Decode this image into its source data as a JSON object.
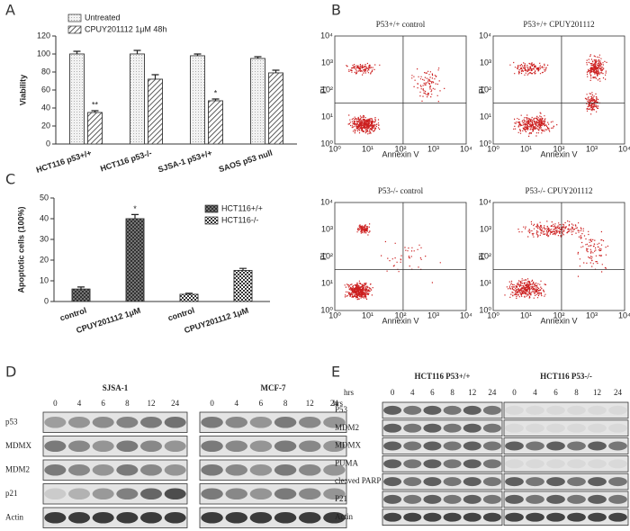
{
  "panel_labels": [
    "A",
    "B",
    "C",
    "D",
    "E"
  ],
  "chart_data": [
    {
      "type": "bar",
      "ylabel": "Viability",
      "categories": [
        "HCT116  p53+/+",
        "HCT116  p53-/-",
        "SJSA-1  p53+/+",
        "SAOS  p53 null"
      ],
      "series": [
        {
          "name": "Untreated",
          "color": "#ececec",
          "values": [
            100,
            100,
            98,
            95
          ],
          "errors": [
            3,
            4,
            2,
            2
          ]
        },
        {
          "name": "CPUY201112  1μM  48h",
          "color": "#ffffff",
          "values": [
            35,
            72,
            48,
            79
          ],
          "errors": [
            2,
            5,
            2,
            3
          ]
        }
      ],
      "annotations": [
        "**",
        "*"
      ],
      "ylim": [
        0,
        120
      ],
      "yticks": [
        0,
        20,
        40,
        60,
        80,
        100,
        120
      ]
    },
    {
      "type": "bar",
      "ylabel": "Apoptotic cells (100%)",
      "categories": [
        "control",
        "CPUY201112  1μM",
        "control",
        "CPUY201112  1μM"
      ],
      "series": [
        {
          "name": "HCT116+/+",
          "color": "#7a7a7a",
          "values": [
            6,
            40,
            null,
            null
          ],
          "errors": [
            1,
            2,
            null,
            null
          ]
        },
        {
          "name": "HCT116-/-",
          "color": "#ffffff",
          "values": [
            null,
            null,
            3.5,
            15
          ],
          "errors": [
            null,
            null,
            0.5,
            1
          ]
        }
      ],
      "annotations": [
        "*"
      ],
      "ylim": [
        0,
        50
      ],
      "yticks": [
        0,
        10,
        20,
        30,
        40,
        50
      ]
    }
  ],
  "flow_cytometry": {
    "plots": [
      "P53+/+ control",
      "P53+/+  CPUY201112",
      "P53-/- control",
      "P53-/-  CPUY201112"
    ],
    "x_label": "Annexin V",
    "y_label": "PI",
    "tick_labels": [
      "10⁰",
      "10¹",
      "10²",
      "10³",
      "10⁴"
    ]
  },
  "blot_d": {
    "groups": [
      "SJSA-1",
      "MCF-7"
    ],
    "times": [
      "0",
      "4",
      "6",
      "8",
      "12",
      "24"
    ],
    "time_unit": "hrs",
    "rows": [
      "p53",
      "MDMX",
      "MDM2",
      "p21",
      "Actin"
    ]
  },
  "blot_e": {
    "groups": [
      "HCT116 P53+/+",
      "HCT116 P53-/-"
    ],
    "times": [
      "0",
      "4",
      "6",
      "8",
      "12",
      "24"
    ],
    "time_unit": "hrs",
    "rows": [
      "P53",
      "MDM2",
      "MDMX",
      "PUMA",
      "cleaved PARP",
      "P21",
      "Actin"
    ]
  }
}
